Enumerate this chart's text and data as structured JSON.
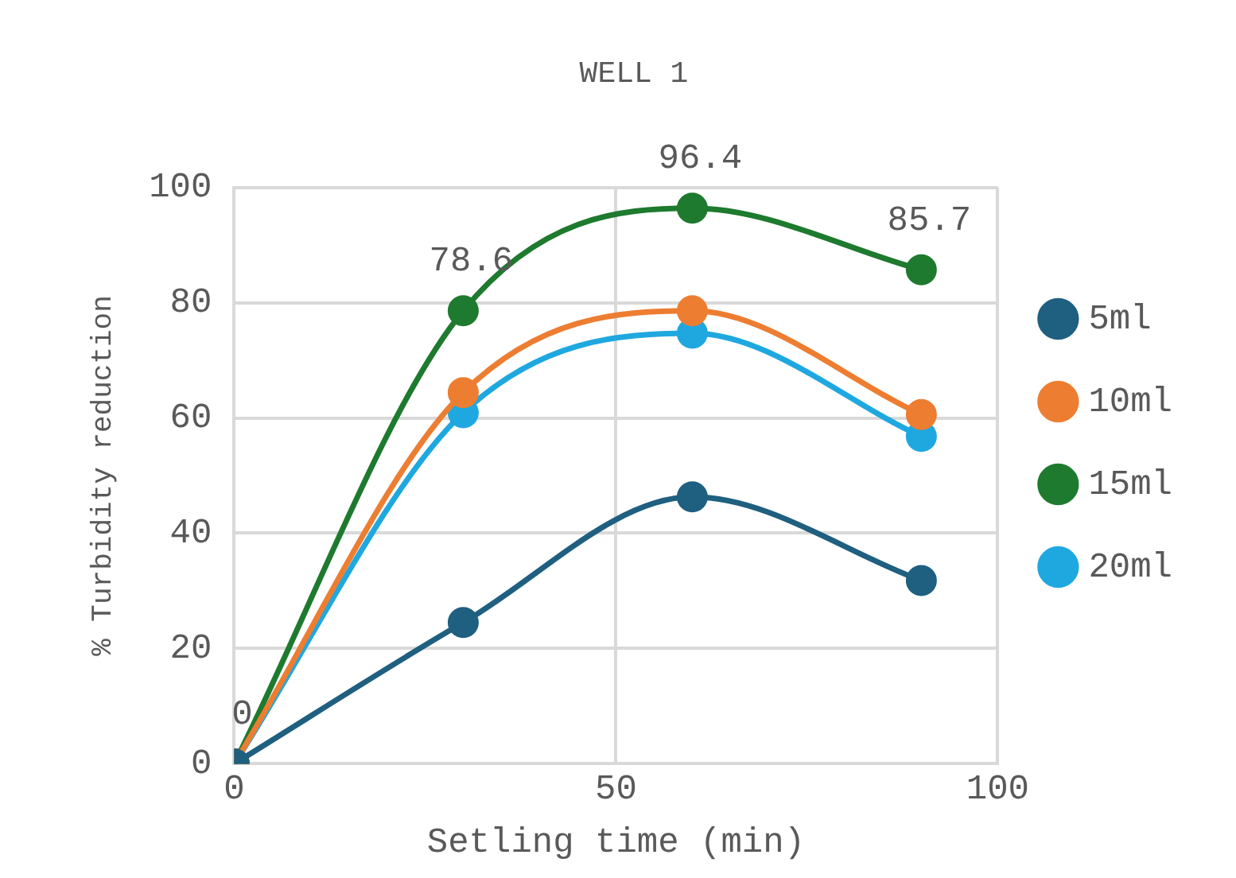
{
  "chart_data": {
    "type": "line",
    "title": "WELL 1",
    "xlabel": "Setling time (min)",
    "ylabel": "% Turbidity reduction",
    "x": [
      0,
      30,
      60,
      90
    ],
    "series": [
      {
        "name": "5ml",
        "color": "#1f5f80",
        "values": [
          0,
          24.5,
          46.3,
          31.8
        ]
      },
      {
        "name": "10ml",
        "color": "#ed7d31",
        "values": [
          0,
          64.4,
          78.6,
          60.6
        ]
      },
      {
        "name": "15ml",
        "color": "#1e7a2e",
        "values": [
          0,
          78.6,
          96.4,
          85.7
        ],
        "value_labels": [
          "0",
          "78.6",
          "96.4",
          "85.7"
        ]
      },
      {
        "name": "20ml",
        "color": "#1fa8e0",
        "values": [
          0,
          60.9,
          74.7,
          56.8
        ]
      }
    ],
    "xlim": [
      0,
      100
    ],
    "xticks": [
      0,
      50,
      100
    ],
    "ylim": [
      0,
      100
    ],
    "yticks": [
      0,
      20,
      40,
      60,
      80,
      100
    ],
    "grid": true,
    "legend": "right",
    "marker": "circle",
    "line_style": "solid"
  }
}
